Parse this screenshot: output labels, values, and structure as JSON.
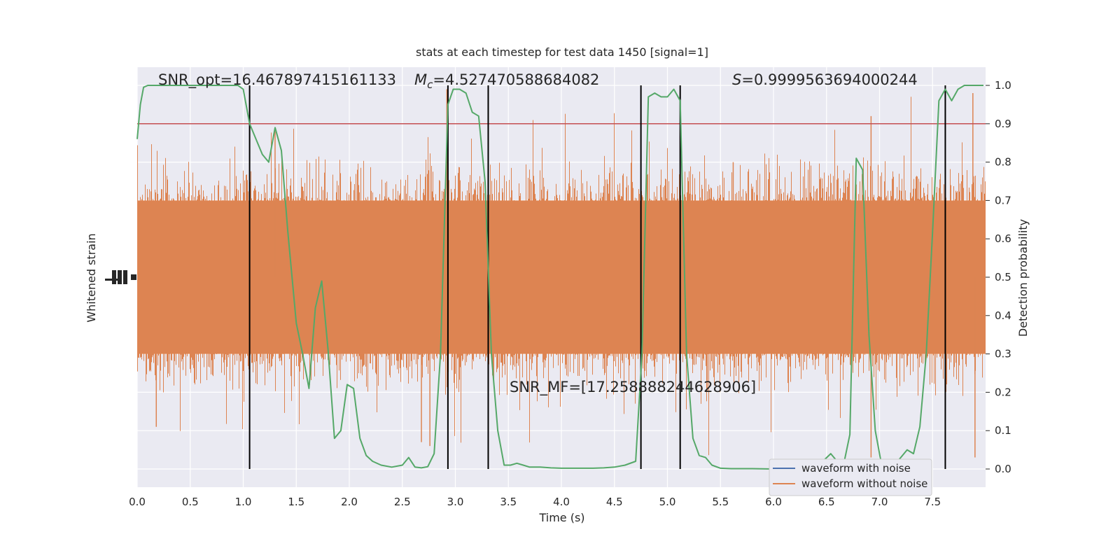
{
  "chart_data": {
    "type": "line",
    "title": "stats at each timestep for test data 1450 [signal=1]",
    "xlabel": "Time (s)",
    "ylabel_left": "Whitened strain",
    "ylabel_right": "Detection probability",
    "xlim": [
      0.0,
      8.0
    ],
    "ylim_right": [
      -0.05,
      1.05
    ],
    "x_ticks": [
      "0.0",
      "0.5",
      "1.0",
      "1.5",
      "2.0",
      "2.5",
      "3.0",
      "3.5",
      "4.0",
      "4.5",
      "5.0",
      "5.5",
      "6.0",
      "6.5",
      "7.0",
      "7.5"
    ],
    "y_ticks_right": [
      "0.0",
      "0.1",
      "0.2",
      "0.3",
      "0.4",
      "0.5",
      "0.6",
      "0.7",
      "0.8",
      "0.9",
      "1.0"
    ],
    "grid": true,
    "legend_position": "lower-right",
    "annotations": {
      "snr_opt": "SNR_opt=16.467897415161133",
      "mc_symbol": "M",
      "mc_sub": "c",
      "mc_value": "=4.527470588684082",
      "s_symbol": "S",
      "s_value": "=0.9999563694000244",
      "snr_mf": "SNR_MF=[17.258888244628906]"
    },
    "threshold": 0.9,
    "boundaries": [
      1.06,
      2.93,
      3.31,
      4.75,
      5.12,
      7.62
    ],
    "noise": {
      "center": 0.5,
      "typical_min": 0.3,
      "typical_max": 0.7,
      "extreme_min": 0.03,
      "extreme_max": 0.99
    },
    "series": [
      {
        "name": "waveform with noise",
        "color": "#4c72b0"
      },
      {
        "name": "waveform without noise",
        "color": "#dd8452"
      },
      {
        "color": "#55a868",
        "x": [
          0.0,
          0.03,
          0.06,
          0.1,
          0.2,
          0.3,
          0.4,
          0.5,
          0.6,
          0.7,
          0.8,
          0.9,
          0.95,
          1.0,
          1.06,
          1.12,
          1.18,
          1.24,
          1.3,
          1.36,
          1.42,
          1.5,
          1.56,
          1.62,
          1.68,
          1.74,
          1.8,
          1.86,
          1.92,
          1.98,
          2.04,
          2.1,
          2.16,
          2.22,
          2.3,
          2.4,
          2.5,
          2.56,
          2.62,
          2.68,
          2.74,
          2.8,
          2.86,
          2.93,
          2.98,
          3.04,
          3.1,
          3.16,
          3.22,
          3.28,
          3.34,
          3.4,
          3.46,
          3.52,
          3.58,
          3.64,
          3.7,
          3.8,
          3.9,
          4.0,
          4.1,
          4.2,
          4.3,
          4.4,
          4.5,
          4.6,
          4.7,
          4.76,
          4.82,
          4.88,
          4.94,
          5.0,
          5.06,
          5.12,
          5.18,
          5.24,
          5.3,
          5.36,
          5.42,
          5.5,
          5.6,
          5.8,
          6.0,
          6.2,
          6.4,
          6.54,
          6.6,
          6.66,
          6.72,
          6.78,
          6.84,
          6.9,
          6.96,
          7.02,
          7.08,
          7.14,
          7.2,
          7.26,
          7.32,
          7.38,
          7.44,
          7.5,
          7.56,
          7.62,
          7.68,
          7.74,
          7.8,
          7.86,
          7.92,
          7.98
        ],
        "y": [
          0.86,
          0.95,
          0.995,
          1.0,
          1.0,
          1.0,
          1.0,
          1.0,
          1.0,
          1.0,
          1.0,
          1.0,
          1.0,
          0.99,
          0.9,
          0.86,
          0.82,
          0.8,
          0.89,
          0.83,
          0.62,
          0.38,
          0.3,
          0.21,
          0.42,
          0.49,
          0.31,
          0.08,
          0.1,
          0.22,
          0.21,
          0.08,
          0.035,
          0.02,
          0.01,
          0.005,
          0.01,
          0.03,
          0.005,
          0.003,
          0.006,
          0.04,
          0.3,
          0.95,
          0.99,
          0.99,
          0.98,
          0.93,
          0.92,
          0.75,
          0.3,
          0.1,
          0.01,
          0.01,
          0.015,
          0.01,
          0.005,
          0.005,
          0.003,
          0.002,
          0.002,
          0.002,
          0.002,
          0.003,
          0.005,
          0.01,
          0.02,
          0.3,
          0.97,
          0.98,
          0.97,
          0.97,
          0.99,
          0.96,
          0.3,
          0.08,
          0.035,
          0.03,
          0.01,
          0.002,
          0.001,
          0.001,
          0.0,
          0.001,
          0.003,
          0.04,
          0.02,
          0.01,
          0.09,
          0.81,
          0.78,
          0.35,
          0.1,
          0.01,
          0.005,
          0.01,
          0.03,
          0.05,
          0.04,
          0.11,
          0.3,
          0.62,
          0.96,
          0.99,
          0.96,
          0.99,
          1.0,
          1.0,
          1.0,
          1.0
        ]
      }
    ]
  }
}
